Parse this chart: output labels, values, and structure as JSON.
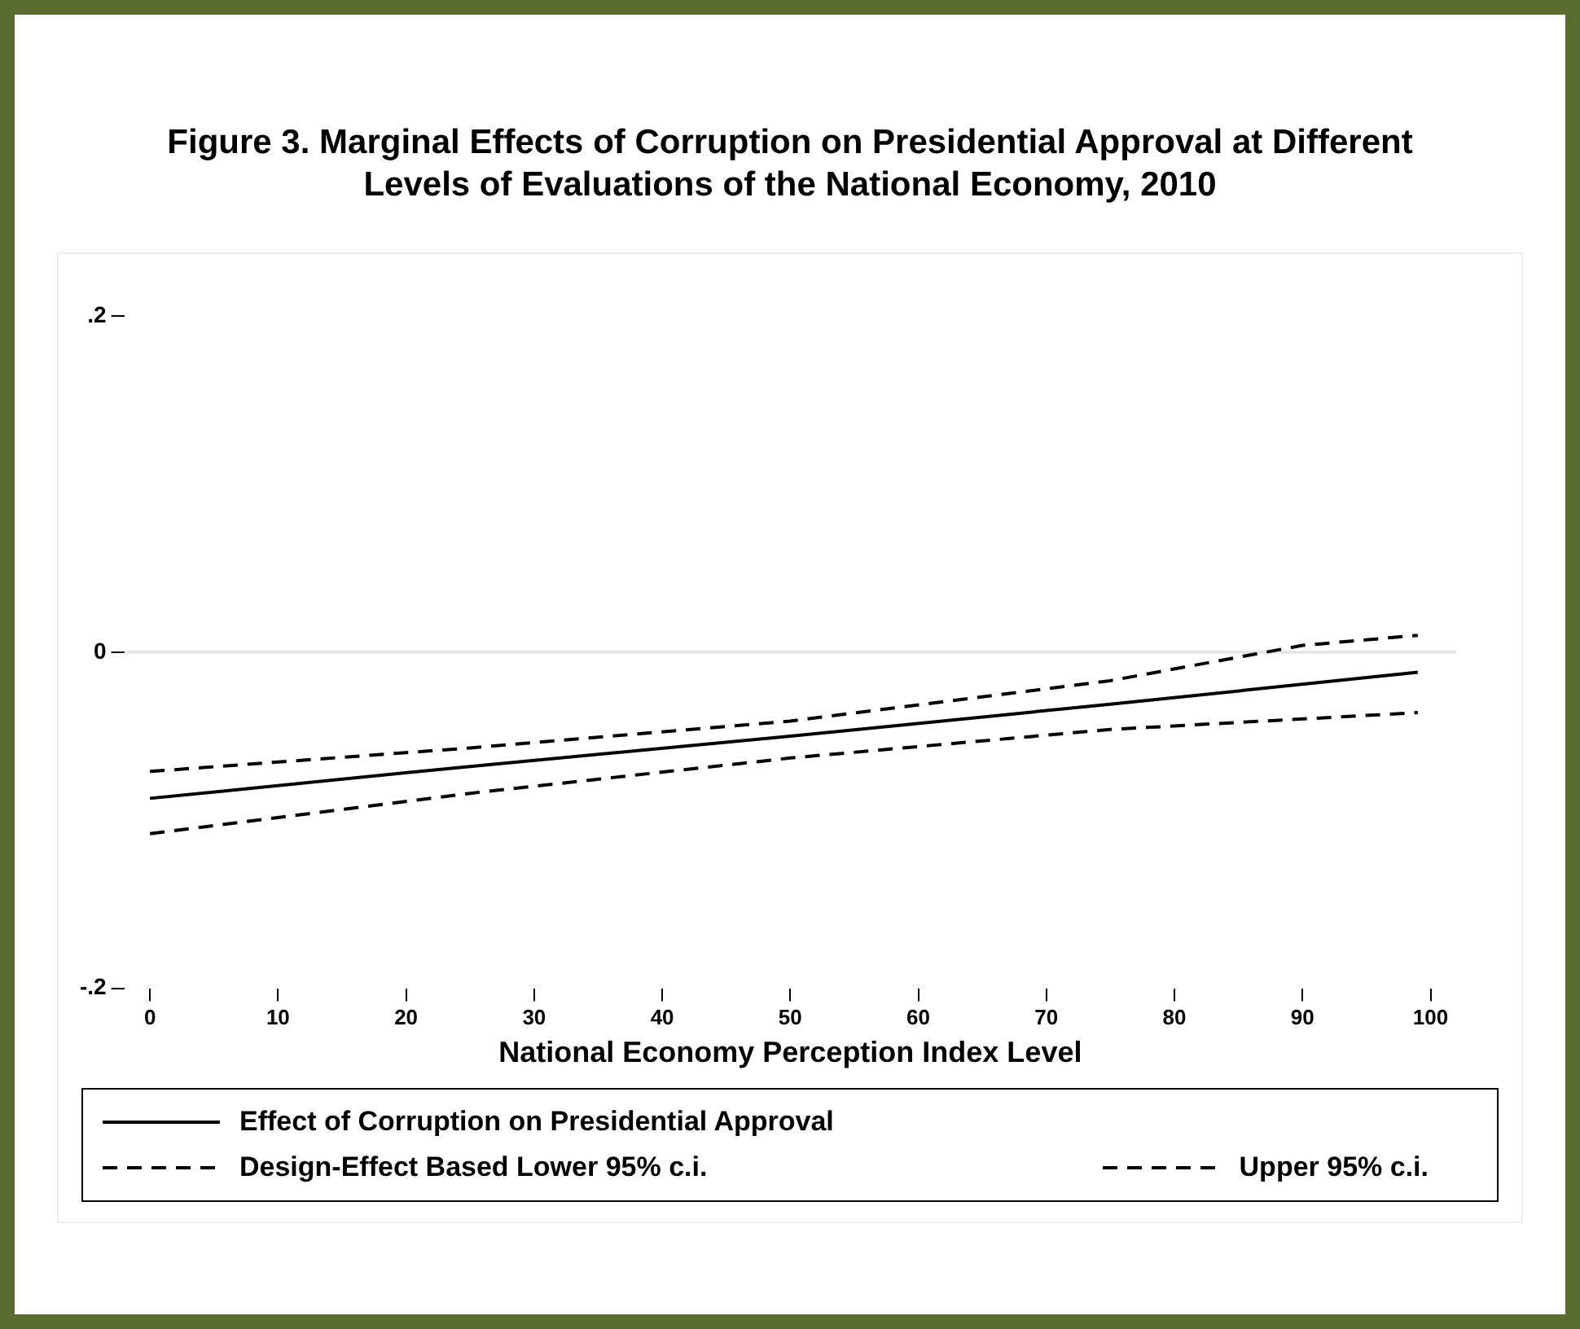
{
  "chart_data": {
    "type": "line",
    "title": "Figure 3. Marginal Effects of Corruption on Presidential Approval at Different Levels of Evaluations of the National Economy, 2010",
    "xlabel": "National Economy Perception Index Level",
    "series": [
      {
        "name": "Effect of Corruption on Presidential Approval",
        "color": "#000000",
        "line_style": "solid",
        "x": [
          0,
          25,
          50,
          75,
          99
        ],
        "values": [
          -0.087,
          -0.068,
          -0.05,
          -0.031,
          -0.012
        ]
      },
      {
        "name": "Design-Effect Based Lower 95% c.i.",
        "color": "#000000",
        "line_style": "dashed",
        "x": [
          0,
          25,
          50,
          75,
          99
        ],
        "values": [
          -0.108,
          -0.084,
          -0.063,
          -0.046,
          -0.036
        ]
      },
      {
        "name": "Upper 95% c.i.",
        "color": "#000000",
        "line_style": "dashed",
        "x": [
          0,
          25,
          50,
          75,
          90,
          99
        ],
        "values": [
          -0.071,
          -0.057,
          -0.041,
          -0.017,
          0.004,
          0.01
        ]
      }
    ],
    "xlim": [
      -2,
      102
    ],
    "xticks": [
      0,
      10,
      20,
      30,
      40,
      50,
      60,
      70,
      80,
      90,
      100
    ],
    "ylim": [
      -0.2,
      0.2
    ],
    "yticks": [
      {
        "value": -0.2,
        "label": "-.2"
      },
      {
        "value": 0,
        "label": "0"
      },
      {
        "value": 0.2,
        "label": ".2"
      }
    ],
    "ref_lines": [
      {
        "axis": "y",
        "value": 0,
        "color": "#e6e6e6"
      }
    ],
    "grid": false,
    "legend": "bottom",
    "marker": "none"
  }
}
